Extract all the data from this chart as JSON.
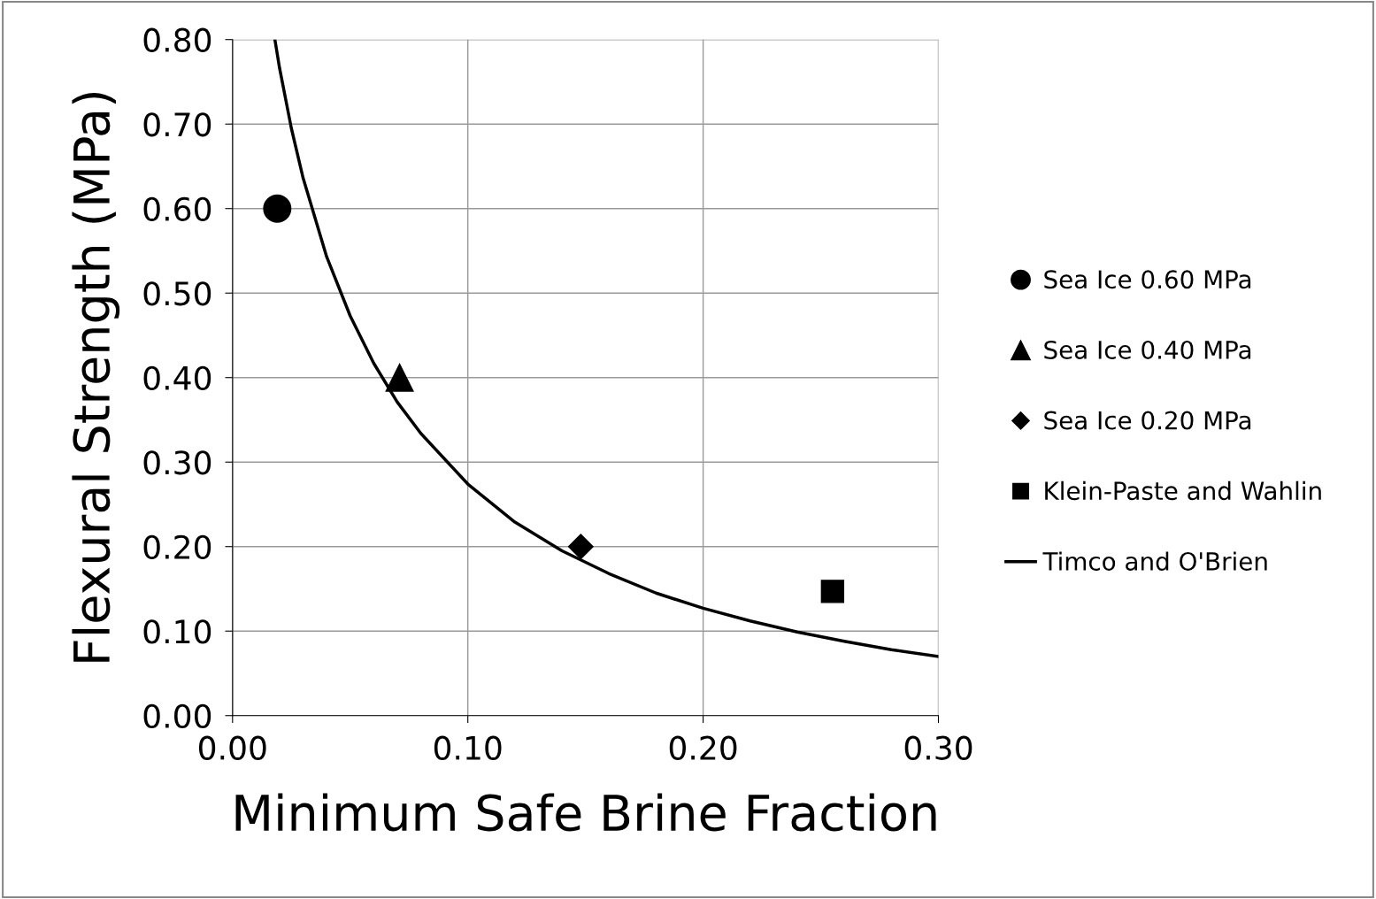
{
  "chart_data": {
    "type": "scatter",
    "xlabel": "Minimum Safe Brine Fraction",
    "ylabel": "Flexural Strength (MPa)",
    "xlim": [
      0,
      0.3
    ],
    "xticks": [
      {
        "value": 0,
        "label": "0.00"
      },
      {
        "value": 0.1,
        "label": "0.10"
      },
      {
        "value": 0.2,
        "label": "0.20"
      },
      {
        "value": 0.3,
        "label": "0.30"
      }
    ],
    "ylim": [
      0,
      0.8
    ],
    "yticks": [
      {
        "value": 0,
        "label": "0.00"
      },
      {
        "value": 0.1,
        "label": "0.10"
      },
      {
        "value": 0.2,
        "label": "0.20"
      },
      {
        "value": 0.3,
        "label": "0.30"
      },
      {
        "value": 0.4,
        "label": "0.40"
      },
      {
        "value": 0.5,
        "label": "0.50"
      },
      {
        "value": 0.6,
        "label": "0.60"
      },
      {
        "value": 0.7,
        "label": "0.70"
      },
      {
        "value": 0.8,
        "label": "0.80"
      }
    ],
    "grid": true,
    "legend": "right",
    "series": [
      {
        "name": "Sea Ice 0.60 MPa",
        "marker": "circle",
        "color": "#000000",
        "x": [
          0.019
        ],
        "values": [
          0.6
        ]
      },
      {
        "name": "Sea Ice 0.40 MPa",
        "marker": "triangle",
        "color": "#000000",
        "x": [
          0.071
        ],
        "values": [
          0.4
        ]
      },
      {
        "name": "Sea Ice 0.20 MPa",
        "marker": "diamond",
        "color": "#000000",
        "x": [
          0.148
        ],
        "values": [
          0.2
        ]
      },
      {
        "name": "Klein-Paste and Wahlin",
        "marker": "square",
        "color": "#000000",
        "x": [
          0.255
        ],
        "values": [
          0.147
        ]
      },
      {
        "name": "Timco and O'Brien",
        "type": "line",
        "marker": "none",
        "line_style": "solid",
        "color": "#000000",
        "x": [
          0.018,
          0.02,
          0.025,
          0.03,
          0.04,
          0.05,
          0.06,
          0.07,
          0.08,
          0.1,
          0.12,
          0.14,
          0.16,
          0.18,
          0.2,
          0.22,
          0.24,
          0.26,
          0.28,
          0.3
        ],
        "values": [
          0.8,
          0.766,
          0.695,
          0.636,
          0.543,
          0.473,
          0.417,
          0.371,
          0.334,
          0.274,
          0.229,
          0.195,
          0.168,
          0.145,
          0.127,
          0.112,
          0.099,
          0.088,
          0.078,
          0.07
        ]
      }
    ]
  }
}
